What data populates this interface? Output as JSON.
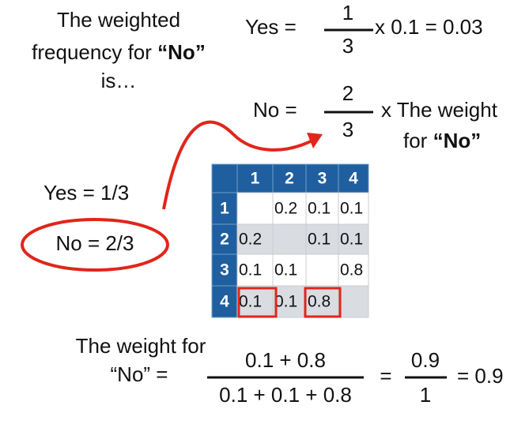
{
  "intro": {
    "line1": "The weighted",
    "line2": "frequency for ",
    "line2_bold": "“No”",
    "line3": "is…"
  },
  "yes_equation": {
    "lhs": "Yes =",
    "numerator": "1",
    "denominator": "3",
    "rhs": "x 0.1 = 0.03"
  },
  "no_equation": {
    "lhs": "No =",
    "numerator": "2",
    "denominator": "3",
    "rhs_line1": "x The weight",
    "rhs_line2": "for ",
    "rhs_line2_bold": "“No”"
  },
  "probabilities": {
    "yes": "Yes = 1/3",
    "no": "No = 2/3"
  },
  "table": {
    "header": [
      null,
      "1",
      "2",
      "3",
      "4"
    ],
    "rows": [
      [
        "1",
        null,
        "0.2",
        "0.1",
        "0.1"
      ],
      [
        "2",
        "0.2",
        null,
        "0.1",
        "0.1"
      ],
      [
        "3",
        "0.1",
        "0.1",
        null,
        "0.8"
      ],
      [
        "4",
        "0.1",
        "0.1",
        "0.8",
        null
      ]
    ]
  },
  "weight_equation": {
    "label_line1": "The weight for",
    "label_line2": "“No” =",
    "numerator": "0.1 + 0.8",
    "denominator": "0.1 + 0.1 + 0.8",
    "equals": "=",
    "fraction2_numerator": "0.9",
    "fraction2_denominator": "1",
    "result": "= 0.9"
  }
}
